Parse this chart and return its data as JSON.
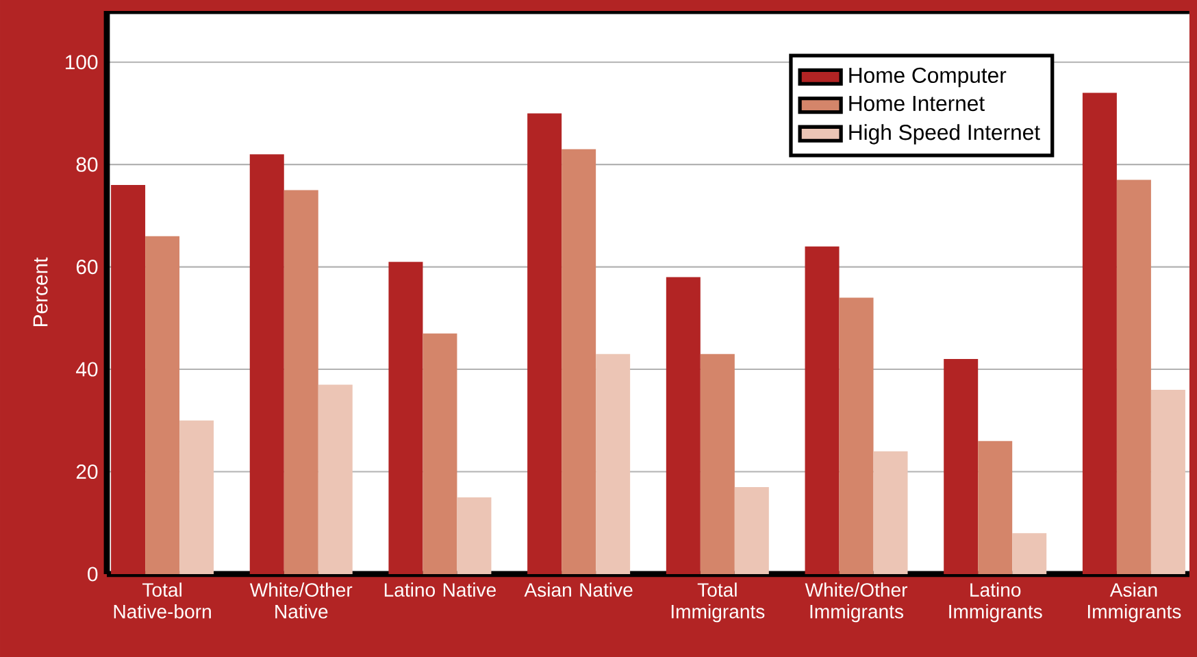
{
  "chart_data": {
    "type": "bar",
    "ylabel": "Percent",
    "categories": [
      "Total Native-born",
      "White/Other Native",
      "Latino Native",
      "Asian Native",
      "Total Immigrants",
      "White/Other Immigrants",
      "Latino Immigrants",
      "Asian Immigrants"
    ],
    "series": [
      {
        "name": "Home Computer",
        "color": "#b22424",
        "values": [
          76,
          82,
          61,
          90,
          58,
          64,
          42,
          94
        ]
      },
      {
        "name": "Home Internet",
        "color": "#d4856a",
        "values": [
          66,
          75,
          47,
          83,
          43,
          54,
          26,
          77
        ]
      },
      {
        "name": "High Speed Internet",
        "color": "#ecc5b5",
        "values": [
          30,
          37,
          15,
          43,
          17,
          24,
          8,
          36
        ]
      }
    ],
    "ylim": [
      0,
      110
    ],
    "yticks": [
      0,
      20,
      40,
      60,
      80,
      100
    ],
    "grid": "y",
    "legend": "top right"
  }
}
